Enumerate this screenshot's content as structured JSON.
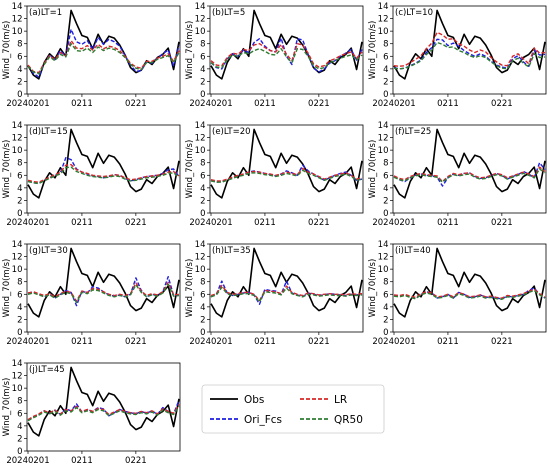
{
  "chart_data": {
    "type": "line",
    "ylabel": "Wind_70(m/s)",
    "ylim": [
      0,
      14
    ],
    "yticks": [
      0,
      2,
      4,
      6,
      8,
      10,
      12,
      14
    ],
    "xtick_labels": [
      "20240201",
      "0211",
      "0221"
    ],
    "x_dates": [
      "0201",
      "0202",
      "0203",
      "0204",
      "0205",
      "0206",
      "0207",
      "0208",
      "0209",
      "0210",
      "0211",
      "0212",
      "0213",
      "0214",
      "0215",
      "0216",
      "0217",
      "0218",
      "0219",
      "0220",
      "0221",
      "0222",
      "0223",
      "0224",
      "0225",
      "0226",
      "0227",
      "0228",
      "0229"
    ],
    "legend": [
      {
        "name": "Obs",
        "color": "#000000",
        "dash": "solid"
      },
      {
        "name": "LR",
        "color": "#d62728",
        "dash": "dashed"
      },
      {
        "name": "Ori_Fcs",
        "color": "#1f1fe0",
        "dash": "dashed"
      },
      {
        "name": "QR50",
        "color": "#2e7d32",
        "dash": "dashed"
      }
    ],
    "obs": [
      4.5,
      3.0,
      2.4,
      5.0,
      6.4,
      5.6,
      7.2,
      6.0,
      13.3,
      11.2,
      9.3,
      9.0,
      7.2,
      9.5,
      7.9,
      9.2,
      8.9,
      7.8,
      6.2,
      4.2,
      3.4,
      3.8,
      5.3,
      4.7,
      5.8,
      6.3,
      7.3,
      3.9,
      8.3
    ],
    "panels": [
      {
        "label": "(a)LT=1",
        "ori": [
          4.5,
          3.3,
          2.7,
          4.8,
          6.2,
          5.4,
          6.9,
          6.0,
          10.3,
          8.3,
          7.9,
          8.5,
          7.1,
          9.0,
          7.9,
          8.7,
          8.3,
          7.6,
          6.1,
          4.6,
          3.6,
          3.7,
          5.1,
          4.9,
          5.7,
          6.4,
          7.0,
          4.5,
          7.7
        ],
        "lr": [
          4.6,
          3.6,
          3.4,
          4.9,
          6.1,
          5.5,
          6.6,
          6.1,
          8.5,
          7.3,
          7.2,
          7.7,
          7.0,
          7.9,
          7.2,
          7.6,
          7.4,
          6.9,
          6.0,
          4.9,
          4.3,
          4.1,
          5.2,
          5.2,
          5.7,
          6.0,
          6.4,
          5.2,
          6.9
        ],
        "qr": [
          4.4,
          3.5,
          3.2,
          4.7,
          5.9,
          5.3,
          6.3,
          5.9,
          8.0,
          6.9,
          6.8,
          7.3,
          6.6,
          7.5,
          6.9,
          7.3,
          7.1,
          6.6,
          5.8,
          4.7,
          4.1,
          3.9,
          5.0,
          5.0,
          5.5,
          5.8,
          6.1,
          5.0,
          6.6
        ]
      },
      {
        "label": "(b)LT=5",
        "ori": [
          5.0,
          4.2,
          4.0,
          5.6,
          6.4,
          6.0,
          7.0,
          6.6,
          8.2,
          8.8,
          7.6,
          6.9,
          6.7,
          8.9,
          6.0,
          4.7,
          8.8,
          8.6,
          6.3,
          4.1,
          3.5,
          4.0,
          4.9,
          5.3,
          6.0,
          6.5,
          7.1,
          5.4,
          7.1
        ],
        "lr": [
          5.3,
          4.6,
          4.5,
          5.8,
          6.5,
          6.3,
          7.1,
          6.9,
          7.8,
          8.0,
          7.4,
          6.9,
          6.7,
          7.9,
          6.3,
          5.3,
          8.0,
          7.8,
          6.5,
          4.8,
          4.3,
          4.5,
          5.3,
          5.6,
          6.1,
          6.4,
          6.7,
          5.7,
          6.7
        ],
        "qr": [
          5.0,
          4.3,
          4.2,
          5.5,
          6.2,
          6.0,
          6.6,
          6.4,
          6.9,
          7.2,
          6.8,
          6.3,
          6.2,
          7.2,
          5.9,
          5.0,
          7.2,
          7.1,
          6.0,
          4.5,
          4.0,
          4.2,
          5.0,
          5.3,
          5.7,
          6.0,
          6.2,
          5.4,
          6.2
        ]
      },
      {
        "label": "(c)LT=10",
        "ori": [
          4.2,
          4.0,
          4.1,
          4.5,
          4.9,
          5.4,
          6.6,
          7.4,
          8.7,
          8.6,
          7.7,
          8.1,
          7.6,
          6.9,
          6.4,
          6.0,
          6.4,
          6.0,
          5.2,
          4.6,
          4.3,
          4.1,
          5.6,
          6.1,
          5.1,
          4.4,
          7.0,
          6.2,
          6.3
        ],
        "lr": [
          4.5,
          4.4,
          4.5,
          5.0,
          5.5,
          6.1,
          7.2,
          8.1,
          9.8,
          9.4,
          8.7,
          8.8,
          8.0,
          7.6,
          7.0,
          6.6,
          7.0,
          6.7,
          5.8,
          5.1,
          4.6,
          4.5,
          6.0,
          6.4,
          5.6,
          4.8,
          7.3,
          6.5,
          6.6
        ],
        "qr": [
          4.1,
          4.0,
          4.1,
          4.4,
          4.8,
          5.3,
          6.3,
          7.0,
          8.2,
          7.9,
          7.4,
          7.5,
          6.9,
          6.6,
          6.1,
          5.8,
          6.1,
          5.8,
          5.1,
          4.5,
          4.1,
          4.0,
          5.3,
          5.7,
          4.9,
          4.3,
          6.4,
          5.8,
          5.9
        ]
      },
      {
        "label": "(d)LT=15",
        "ori": [
          5.1,
          4.8,
          4.7,
          5.2,
          5.6,
          6.0,
          6.4,
          8.8,
          8.5,
          7.0,
          6.5,
          6.2,
          5.9,
          5.8,
          5.6,
          5.8,
          6.1,
          6.0,
          5.5,
          5.1,
          5.3,
          5.6,
          5.8,
          5.9,
          6.0,
          6.3,
          6.9,
          7.0,
          5.8
        ],
        "lr": [
          5.2,
          5.0,
          4.9,
          5.3,
          5.7,
          6.1,
          6.5,
          7.6,
          7.7,
          6.9,
          6.5,
          6.3,
          6.0,
          5.9,
          5.8,
          5.9,
          6.1,
          6.0,
          5.6,
          5.3,
          5.4,
          5.6,
          5.8,
          5.9,
          6.0,
          6.2,
          6.5,
          6.6,
          5.9
        ],
        "qr": [
          5.0,
          4.8,
          4.7,
          5.1,
          5.5,
          5.9,
          6.2,
          7.2,
          7.3,
          6.6,
          6.3,
          6.0,
          5.8,
          5.7,
          5.6,
          5.7,
          5.9,
          5.8,
          5.4,
          5.1,
          5.2,
          5.4,
          5.6,
          5.7,
          5.8,
          6.0,
          6.3,
          6.4,
          5.7
        ]
      },
      {
        "label": "(e)LT=20",
        "ori": [
          5.2,
          4.9,
          5.0,
          5.3,
          5.6,
          5.9,
          6.2,
          6.5,
          6.7,
          6.5,
          6.3,
          6.1,
          5.9,
          6.2,
          6.7,
          6.4,
          6.0,
          7.6,
          6.7,
          6.2,
          5.7,
          5.2,
          5.6,
          6.0,
          6.3,
          6.5,
          6.0,
          5.2,
          5.4
        ],
        "lr": [
          5.3,
          5.1,
          5.1,
          5.4,
          5.7,
          6.0,
          6.2,
          6.5,
          6.6,
          6.5,
          6.3,
          6.2,
          6.0,
          6.2,
          6.5,
          6.3,
          6.1,
          7.1,
          6.5,
          6.2,
          5.8,
          5.4,
          5.7,
          6.0,
          6.2,
          6.4,
          6.0,
          5.4,
          5.6
        ],
        "qr": [
          5.1,
          4.9,
          4.9,
          5.2,
          5.5,
          5.8,
          6.0,
          6.3,
          6.4,
          6.3,
          6.1,
          6.0,
          5.8,
          6.0,
          6.3,
          6.1,
          5.9,
          6.8,
          6.3,
          6.0,
          5.6,
          5.2,
          5.5,
          5.8,
          6.0,
          6.2,
          5.8,
          5.2,
          5.4
        ]
      },
      {
        "label": "(f)LT=25",
        "ori": [
          5.8,
          5.3,
          5.0,
          5.6,
          6.0,
          6.2,
          6.0,
          5.9,
          5.7,
          4.3,
          5.6,
          6.2,
          6.0,
          6.3,
          6.4,
          5.8,
          5.5,
          5.6,
          6.0,
          6.3,
          6.0,
          5.4,
          5.8,
          6.1,
          6.6,
          6.2,
          5.6,
          8.0,
          6.9
        ],
        "lr": [
          5.9,
          5.5,
          5.3,
          5.8,
          6.1,
          6.3,
          6.1,
          6.0,
          5.9,
          5.0,
          5.8,
          6.3,
          6.1,
          6.3,
          6.4,
          5.9,
          5.6,
          5.7,
          6.0,
          6.3,
          6.1,
          5.6,
          5.9,
          6.2,
          6.5,
          6.2,
          5.8,
          7.3,
          6.6
        ],
        "qr": [
          5.7,
          5.3,
          5.1,
          5.6,
          5.9,
          6.1,
          5.9,
          5.8,
          5.7,
          4.9,
          5.6,
          6.1,
          5.9,
          6.1,
          6.2,
          5.7,
          5.4,
          5.5,
          5.8,
          6.1,
          5.9,
          5.4,
          5.7,
          6.0,
          6.3,
          6.0,
          5.6,
          7.0,
          6.4
        ]
      },
      {
        "label": "(g)LT=30",
        "ori": [
          6.2,
          6.4,
          6.0,
          5.6,
          6.0,
          5.4,
          6.0,
          6.6,
          6.3,
          4.2,
          6.5,
          6.2,
          7.2,
          7.0,
          6.4,
          5.9,
          5.7,
          5.9,
          5.6,
          6.0,
          8.6,
          6.6,
          5.6,
          6.0,
          5.8,
          6.4,
          8.8,
          5.8,
          5.9
        ],
        "lr": [
          6.2,
          6.4,
          6.1,
          5.8,
          6.1,
          5.6,
          6.1,
          6.5,
          6.3,
          4.9,
          6.5,
          6.3,
          6.9,
          6.8,
          6.4,
          6.0,
          5.8,
          6.0,
          5.8,
          6.1,
          7.8,
          6.5,
          5.8,
          6.1,
          5.9,
          6.4,
          7.9,
          5.9,
          6.0
        ],
        "qr": [
          6.0,
          6.2,
          5.9,
          5.6,
          5.9,
          5.4,
          5.9,
          6.3,
          6.1,
          4.7,
          6.3,
          6.1,
          6.7,
          6.6,
          6.2,
          5.8,
          5.6,
          5.8,
          5.6,
          5.9,
          7.5,
          6.3,
          5.6,
          5.9,
          5.7,
          6.2,
          7.6,
          5.7,
          5.8
        ]
      },
      {
        "label": "(h)LT=35",
        "ori": [
          5.6,
          6.0,
          8.1,
          6.2,
          5.8,
          6.0,
          6.2,
          6.3,
          5.9,
          4.4,
          6.8,
          6.6,
          6.5,
          6.0,
          8.1,
          6.2,
          5.9,
          5.6,
          6.2,
          6.0,
          5.8,
          5.9,
          6.1,
          6.0,
          5.9,
          5.8,
          6.0,
          5.9,
          6.1
        ],
        "lr": [
          5.8,
          6.1,
          7.4,
          6.3,
          6.0,
          6.1,
          6.3,
          6.3,
          6.0,
          5.0,
          6.6,
          6.5,
          6.4,
          6.1,
          7.3,
          6.3,
          6.0,
          5.8,
          6.2,
          6.1,
          5.9,
          6.0,
          6.1,
          6.0,
          6.0,
          5.9,
          6.1,
          6.0,
          6.1
        ],
        "qr": [
          5.6,
          5.9,
          7.1,
          6.1,
          5.8,
          5.9,
          6.1,
          6.1,
          5.8,
          4.8,
          6.4,
          6.3,
          6.2,
          5.9,
          7.0,
          6.1,
          5.8,
          5.6,
          6.0,
          5.9,
          5.7,
          5.8,
          5.9,
          5.8,
          5.8,
          5.7,
          5.9,
          5.8,
          5.9
        ]
      },
      {
        "label": "(i)LT=40",
        "ori": [
          5.8,
          5.7,
          5.9,
          5.6,
          5.3,
          6.0,
          6.4,
          6.2,
          5.4,
          5.6,
          6.0,
          5.4,
          6.3,
          6.0,
          5.5,
          5.6,
          5.9,
          5.5,
          5.6,
          5.4,
          5.3,
          5.7,
          5.6,
          5.8,
          6.0,
          6.6,
          7.0,
          6.0,
          5.4
        ],
        "lr": [
          5.9,
          5.8,
          6.0,
          5.7,
          5.5,
          6.1,
          6.4,
          6.2,
          5.6,
          5.7,
          6.0,
          5.6,
          6.3,
          6.0,
          5.6,
          5.7,
          5.9,
          5.6,
          5.7,
          5.5,
          5.4,
          5.8,
          5.7,
          5.9,
          6.1,
          6.5,
          6.8,
          6.1,
          5.6
        ],
        "qr": [
          5.7,
          5.6,
          5.8,
          5.5,
          5.3,
          5.9,
          6.2,
          6.0,
          5.4,
          5.5,
          5.8,
          5.4,
          6.1,
          5.8,
          5.4,
          5.5,
          5.7,
          5.4,
          5.5,
          5.3,
          5.2,
          5.6,
          5.5,
          5.7,
          5.9,
          6.3,
          6.6,
          5.9,
          5.4
        ]
      },
      {
        "label": "(j)LT=45",
        "ori": [
          4.9,
          5.4,
          5.8,
          6.4,
          6.0,
          6.5,
          5.8,
          6.7,
          6.4,
          7.5,
          6.2,
          6.6,
          6.3,
          6.9,
          6.7,
          5.6,
          6.1,
          6.6,
          6.3,
          6.1,
          5.9,
          6.3,
          6.0,
          6.4,
          5.8,
          6.9,
          6.3,
          5.9,
          8.1
        ],
        "lr": [
          5.0,
          5.5,
          5.9,
          6.4,
          6.1,
          6.5,
          5.9,
          6.6,
          6.4,
          7.1,
          6.3,
          6.6,
          6.3,
          6.8,
          6.6,
          5.8,
          6.2,
          6.6,
          6.3,
          6.1,
          6.0,
          6.3,
          6.1,
          6.4,
          5.9,
          6.7,
          6.3,
          6.0,
          7.4
        ],
        "qr": [
          4.8,
          5.3,
          5.7,
          6.2,
          5.9,
          6.3,
          5.7,
          6.4,
          6.2,
          6.9,
          6.1,
          6.4,
          6.1,
          6.6,
          6.4,
          5.6,
          6.0,
          6.4,
          6.1,
          5.9,
          5.8,
          6.1,
          5.9,
          6.2,
          5.7,
          6.5,
          6.1,
          5.8,
          7.1
        ]
      }
    ]
  }
}
